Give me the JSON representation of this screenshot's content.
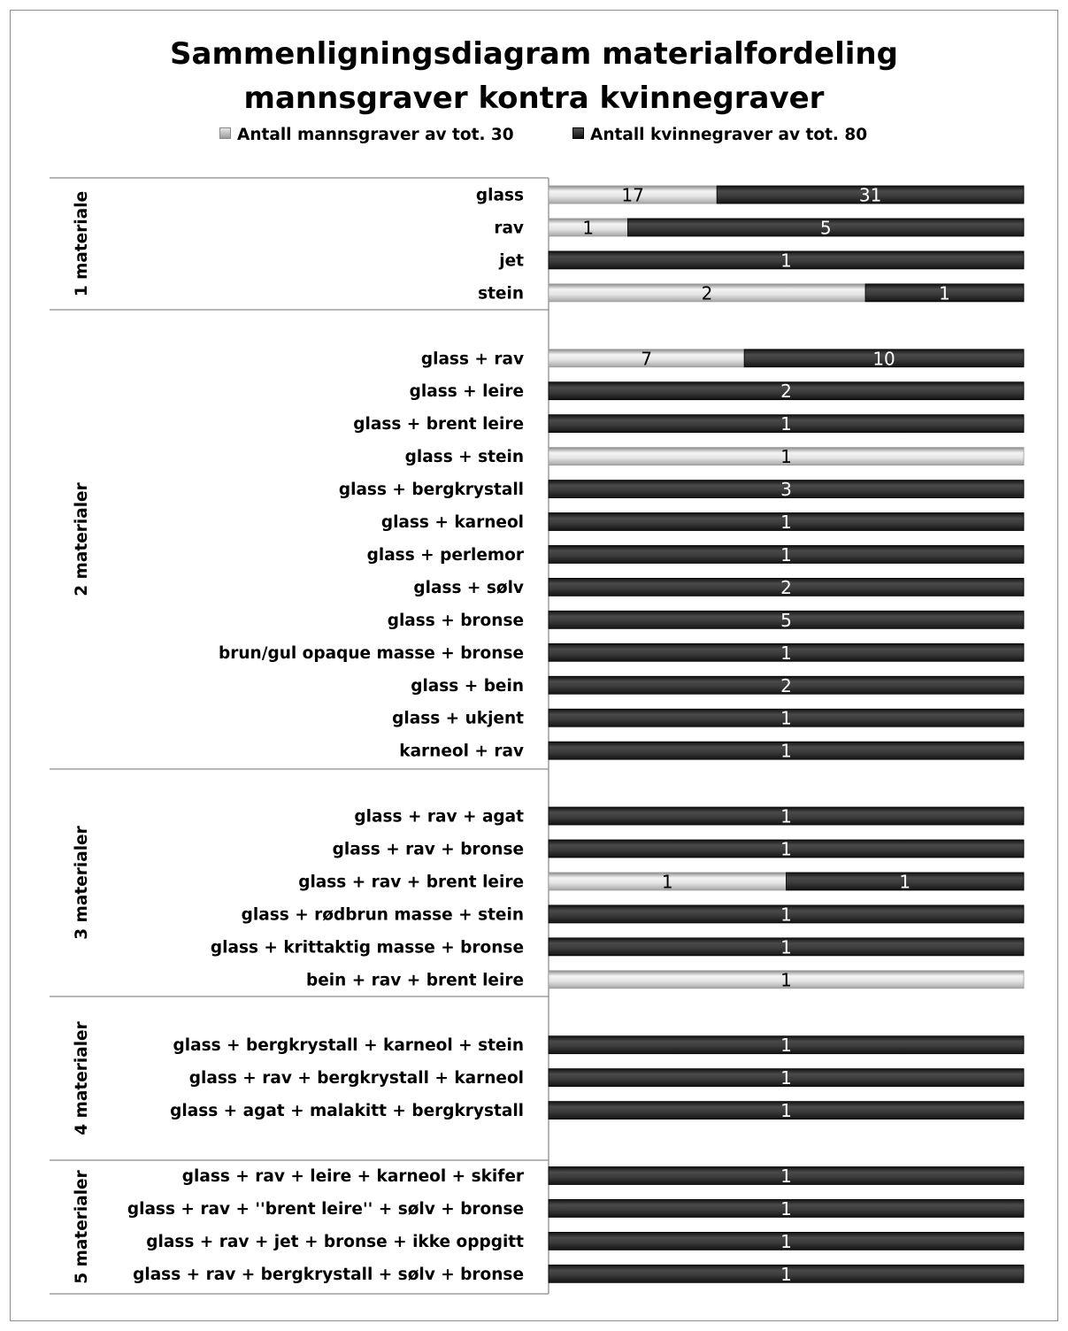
{
  "chart_data": {
    "type": "bar",
    "orientation": "horizontal",
    "stacking": "percent",
    "title_lines": [
      "Sammenligningsdiagram  materialfordeling",
      "mannsgraver kontra kvinnegraver"
    ],
    "legend_position": "top",
    "series": [
      {
        "name": "Antall mannsgraver av tot. 30",
        "color": "#d6d6d6"
      },
      {
        "name": "Antall kvinnegraver av tot. 80",
        "color": "#3a3a3a"
      }
    ],
    "groups": [
      {
        "label": "1 materiale",
        "categories": [
          {
            "label": "glass",
            "values": [
              17,
              31
            ]
          },
          {
            "label": "rav",
            "values": [
              1,
              5
            ]
          },
          {
            "label": "jet",
            "values": [
              0,
              1
            ]
          },
          {
            "label": "stein",
            "values": [
              2,
              1
            ]
          }
        ]
      },
      {
        "label": "2 materialer",
        "categories": [
          {
            "label": "glass + rav",
            "values": [
              7,
              10
            ]
          },
          {
            "label": "glass + leire",
            "values": [
              0,
              2
            ]
          },
          {
            "label": "glass + brent leire",
            "values": [
              0,
              1
            ]
          },
          {
            "label": "glass + stein",
            "values": [
              1,
              0
            ]
          },
          {
            "label": "glass + bergkrystall",
            "values": [
              0,
              3
            ]
          },
          {
            "label": "glass + karneol",
            "values": [
              0,
              1
            ]
          },
          {
            "label": "glass + perlemor",
            "values": [
              0,
              1
            ]
          },
          {
            "label": "glass + sølv",
            "values": [
              0,
              2
            ]
          },
          {
            "label": "glass + bronse",
            "values": [
              0,
              5
            ]
          },
          {
            "label": "brun/gul opaque masse + bronse",
            "values": [
              0,
              1
            ]
          },
          {
            "label": "glass + bein",
            "values": [
              0,
              2
            ]
          },
          {
            "label": "glass + ukjent",
            "values": [
              0,
              1
            ]
          },
          {
            "label": "karneol + rav",
            "values": [
              0,
              1
            ]
          }
        ]
      },
      {
        "label": "3 materialer",
        "categories": [
          {
            "label": "glass + rav + agat",
            "values": [
              0,
              1
            ]
          },
          {
            "label": "glass + rav + bronse",
            "values": [
              0,
              1
            ]
          },
          {
            "label": "glass + rav + brent leire",
            "values": [
              1,
              1
            ]
          },
          {
            "label": "glass + rødbrun masse + stein",
            "values": [
              0,
              1
            ]
          },
          {
            "label": "glass + krittaktig masse + bronse",
            "values": [
              0,
              1
            ]
          },
          {
            "label": "bein + rav + brent leire",
            "values": [
              1,
              0
            ]
          }
        ]
      },
      {
        "label": "4 materialer",
        "categories": [
          {
            "label": "glass + bergkrystall + karneol + stein",
            "values": [
              0,
              1
            ]
          },
          {
            "label": "glass + rav + bergkrystall + karneol",
            "values": [
              0,
              1
            ]
          },
          {
            "label": "glass + agat  + malakitt + bergkrystall",
            "values": [
              0,
              1
            ]
          }
        ]
      },
      {
        "label": "5 materialer",
        "categories": [
          {
            "label": "glass + rav + leire + karneol + skifer",
            "values": [
              0,
              1
            ]
          },
          {
            "label": "glass + rav + ''brent leire'' + sølv + bronse",
            "values": [
              0,
              1
            ]
          },
          {
            "label": "glass + rav + jet + bronse + ikke oppgitt",
            "values": [
              0,
              1
            ]
          },
          {
            "label": "glass + rav + bergkrystall + sølv + bronse",
            "values": [
              0,
              1
            ]
          }
        ]
      }
    ]
  }
}
